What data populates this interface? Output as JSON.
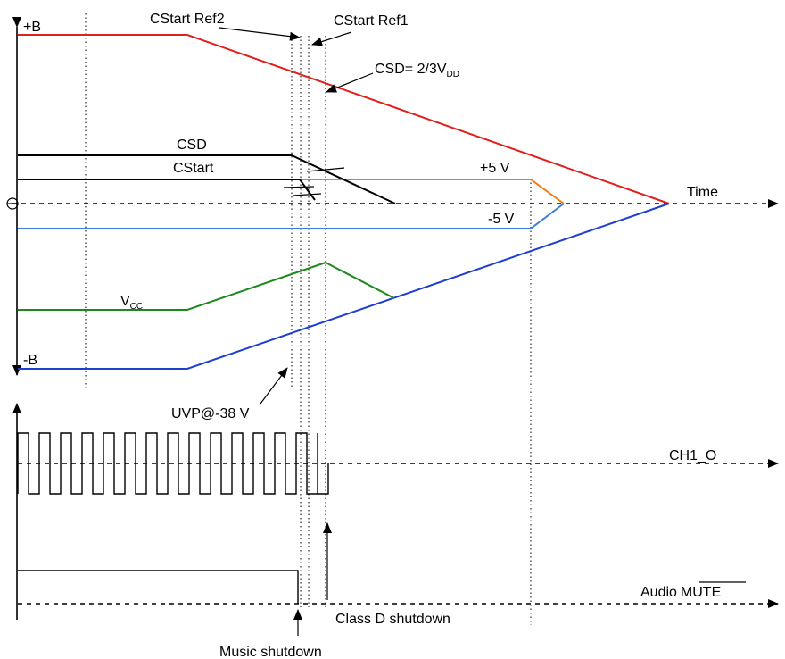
{
  "labels": {
    "plus_b": "+B",
    "minus_b": "-B",
    "cstart_ref2": "CStart Ref2",
    "cstart_ref1": "CStart Ref1",
    "csd_threshold_main": "CSD= 2/3V",
    "csd_threshold_sub": "DD",
    "csd": "CSD",
    "cstart": "CStart",
    "plus_5v": "+5 V",
    "minus_5v": "-5 V",
    "time": "Time",
    "vcc_main": "V",
    "vcc_sub": "CC",
    "uvp": "UVP@-38 V",
    "ch1_o": "CH1_O",
    "audio": "Audio",
    "mute": "MUTE",
    "class_d_shutdown": "Class D shutdown",
    "music_shutdown": "Music shutdown"
  },
  "colors": {
    "plus_b": "#e0201c",
    "minus_b": "#1f3fd1",
    "plus_5v": "#f07c16",
    "minus_5v": "#3f7fe0",
    "vcc": "#1e8a1e",
    "csd": "#000000",
    "cstart": "#000000"
  }
}
